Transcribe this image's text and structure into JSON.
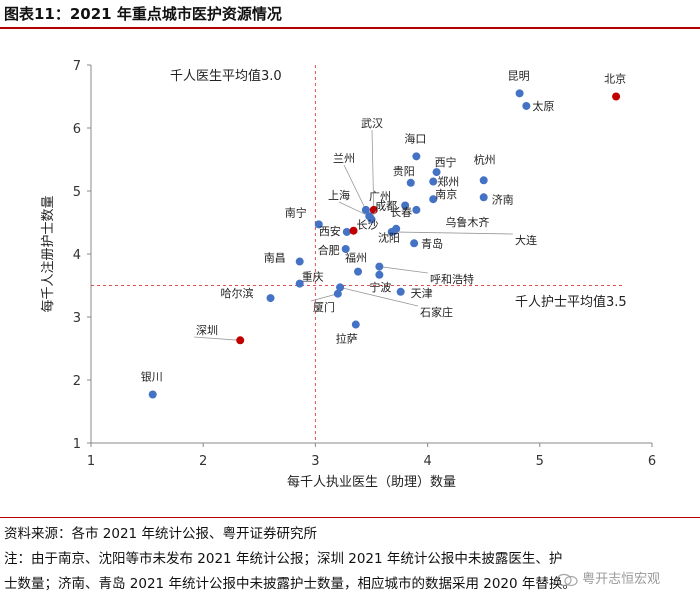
{
  "title": "图表11：2021 年重点城市医护资源情况",
  "source": "资料来源：各市 2021 年统计公报、粤开证券研究所",
  "note_line1": "注：由于南京、沈阳等市未发布 2021 年统计公报；深圳 2021 年统计公报中未披露医生、护",
  "note_line2": "士数量；济南、青岛 2021 年统计公报中未披露护士数量，相应城市的数据采用 2020 年替换。",
  "watermark": "粤开志恒宏观",
  "colors": {
    "normal": "#4472c4",
    "highlight": "#c00000",
    "refline": "#e05050",
    "axis": "#888888",
    "rule": "#b40000"
  },
  "chart_data": {
    "type": "scatter",
    "xlabel": "每千人执业医生（助理）数量",
    "ylabel": "每千人注册护士数量",
    "xlim": [
      1,
      6
    ],
    "ylim": [
      1,
      7
    ],
    "xticks": [
      1,
      2,
      3,
      4,
      5,
      6
    ],
    "yticks": [
      1,
      2,
      3,
      4,
      5,
      6,
      7
    ],
    "grid": false,
    "reference_lines": [
      {
        "axis": "x",
        "value": 3.0,
        "label": "千人医生平均值3.0"
      },
      {
        "axis": "y",
        "value": 3.5,
        "label": "千人护士平均值3.5"
      }
    ],
    "points": [
      {
        "name": "北京",
        "x": 5.68,
        "y": 6.5,
        "highlight": true
      },
      {
        "name": "昆明",
        "x": 4.82,
        "y": 6.55,
        "highlight": false
      },
      {
        "name": "太原",
        "x": 4.88,
        "y": 6.35,
        "highlight": false
      },
      {
        "name": "武汉",
        "x": 3.52,
        "y": 4.7,
        "highlight": true
      },
      {
        "name": "海口",
        "x": 3.9,
        "y": 5.55,
        "highlight": false
      },
      {
        "name": "西宁",
        "x": 4.08,
        "y": 5.3,
        "highlight": false
      },
      {
        "name": "杭州",
        "x": 4.5,
        "y": 5.17,
        "highlight": false
      },
      {
        "name": "兰州",
        "x": 3.45,
        "y": 4.7,
        "highlight": false
      },
      {
        "name": "贵阳",
        "x": 3.85,
        "y": 5.13,
        "highlight": false
      },
      {
        "name": "郑州",
        "x": 4.05,
        "y": 5.15,
        "highlight": false
      },
      {
        "name": "南京",
        "x": 4.05,
        "y": 4.87,
        "highlight": false
      },
      {
        "name": "济南",
        "x": 4.5,
        "y": 4.9,
        "highlight": false
      },
      {
        "name": "上海",
        "x": 3.48,
        "y": 4.6,
        "highlight": false
      },
      {
        "name": "广州",
        "x": 3.5,
        "y": 4.55,
        "highlight": false
      },
      {
        "name": "成都",
        "x": 3.8,
        "y": 4.77,
        "highlight": false
      },
      {
        "name": "乌鲁木齐",
        "x": 3.9,
        "y": 4.7,
        "highlight": false
      },
      {
        "name": "南宁",
        "x": 3.03,
        "y": 4.47,
        "highlight": false
      },
      {
        "name": "西安",
        "x": 3.28,
        "y": 4.35,
        "highlight": false
      },
      {
        "name": "长沙",
        "x": 3.34,
        "y": 4.37,
        "highlight": true
      },
      {
        "name": "长春",
        "x": 3.72,
        "y": 4.4,
        "highlight": false
      },
      {
        "name": "大连",
        "x": 3.68,
        "y": 4.35,
        "highlight": false
      },
      {
        "name": "合肥",
        "x": 3.27,
        "y": 4.08,
        "highlight": false
      },
      {
        "name": "沈阳",
        "x": 3.7,
        "y": 4.36,
        "highlight": false
      },
      {
        "name": "青岛",
        "x": 3.88,
        "y": 4.17,
        "highlight": false
      },
      {
        "name": "南昌",
        "x": 2.86,
        "y": 3.88,
        "highlight": false
      },
      {
        "name": "福州",
        "x": 3.38,
        "y": 3.72,
        "highlight": false
      },
      {
        "name": "呼和浩特",
        "x": 3.57,
        "y": 3.8,
        "highlight": false
      },
      {
        "name": "宁波",
        "x": 3.57,
        "y": 3.67,
        "highlight": false
      },
      {
        "name": "重庆",
        "x": 2.86,
        "y": 3.53,
        "highlight": false
      },
      {
        "name": "哈尔滨",
        "x": 2.6,
        "y": 3.3,
        "highlight": false
      },
      {
        "name": "厦门",
        "x": 3.2,
        "y": 3.37,
        "highlight": false
      },
      {
        "name": "天津",
        "x": 3.76,
        "y": 3.4,
        "highlight": false
      },
      {
        "name": "石家庄",
        "x": 3.22,
        "y": 3.47,
        "highlight": false
      },
      {
        "name": "深圳",
        "x": 2.33,
        "y": 2.63,
        "highlight": true
      },
      {
        "name": "拉萨",
        "x": 3.36,
        "y": 2.88,
        "highlight": false
      },
      {
        "name": "银川",
        "x": 1.55,
        "y": 1.77,
        "highlight": false
      }
    ]
  }
}
